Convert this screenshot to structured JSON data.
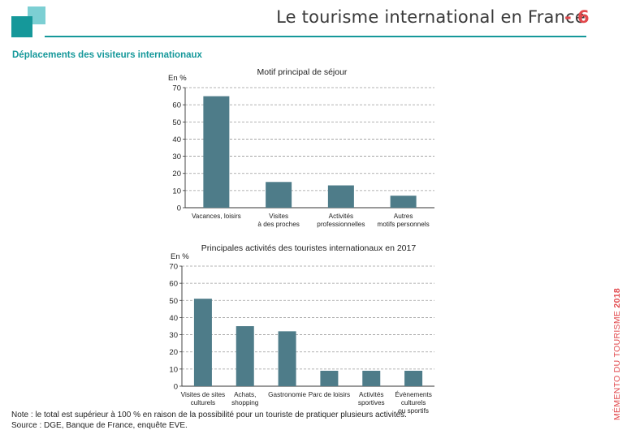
{
  "header": {
    "title": "Le tourisme international en France",
    "separator": "-",
    "page_number": "6"
  },
  "section_title": "Déplacements des visiteurs internationaux",
  "side_label": {
    "prefix": "MÉMENTO DU TOURISME",
    "year": "2018"
  },
  "colors": {
    "bar": "#4e7c89",
    "accent": "#15989a",
    "brand_red": "#e2484c",
    "grid": "#9a9a9a"
  },
  "chart_data": [
    {
      "type": "bar",
      "title": "Motif principal de séjour",
      "ylabel": "En %",
      "ylim": [
        0,
        70
      ],
      "yticks": [
        0,
        10,
        20,
        30,
        40,
        50,
        60,
        70
      ],
      "grid": true,
      "categories": [
        [
          "Vacances, loisirs"
        ],
        [
          "Visites",
          "à des proches"
        ],
        [
          "Activités",
          "professionnelles"
        ],
        [
          "Autres",
          "motifs personnels"
        ]
      ],
      "values": [
        65,
        15,
        13,
        7
      ]
    },
    {
      "type": "bar",
      "title": "Principales activités des touristes internationaux en 2017",
      "ylabel": "En %",
      "ylim": [
        0,
        70
      ],
      "yticks": [
        0,
        10,
        20,
        30,
        40,
        50,
        60,
        70
      ],
      "grid": true,
      "categories": [
        [
          "Visites de sites",
          "culturels"
        ],
        [
          "Achats,",
          "shopping"
        ],
        [
          "Gastronomie"
        ],
        [
          "Parc de loisirs"
        ],
        [
          "Activités",
          "sportives"
        ],
        [
          "Évènements",
          "culturels",
          "ou sportifs"
        ]
      ],
      "values": [
        51,
        35,
        32,
        9,
        9,
        9
      ]
    }
  ],
  "note": {
    "line1": "Note : le total est supérieur à 100 % en raison de la possibilité pour un touriste de pratiquer plusieurs activités.",
    "line2": "Source : DGE, Banque de France, enquête EVE."
  }
}
